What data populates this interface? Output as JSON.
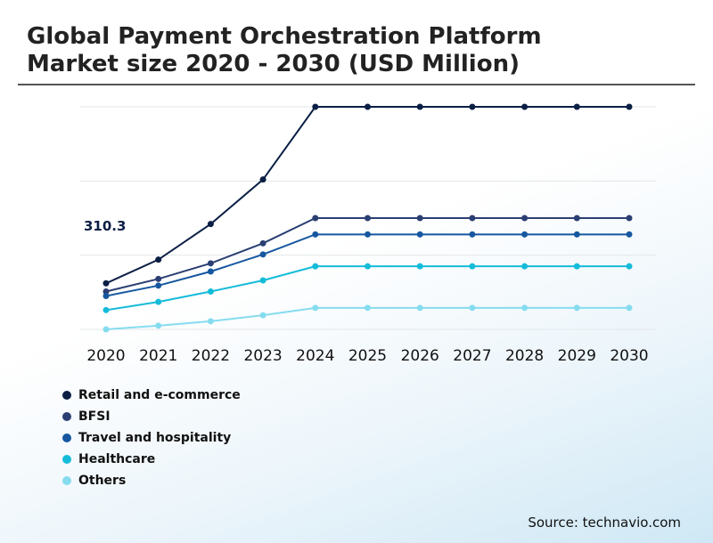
{
  "title_line1": "Global Payment Orchestration Platform",
  "title_line2": "Market size 2020 - 2030 (USD Million)",
  "source": "Source: technavio.com",
  "chart_data": {
    "type": "line",
    "title": "Global Payment Orchestration Platform Market size 2020 - 2030 (USD Million)",
    "xlabel": "",
    "ylabel": "",
    "ylim": [
      0,
      1500
    ],
    "grid": true,
    "legend_position": "bottom-left",
    "categories": [
      "2020",
      "2021",
      "2022",
      "2023",
      "2024",
      "2025",
      "2026",
      "2027",
      "2028",
      "2029",
      "2030"
    ],
    "annotation": "310.3",
    "series": [
      {
        "name": "Retail and e-commerce",
        "color": "#0b1f45",
        "values": [
          310.3,
          470,
          710,
          1010,
          1500,
          1500,
          1500,
          1500,
          1500,
          1500,
          1500
        ]
      },
      {
        "name": "BFSI",
        "color": "#2b3f73",
        "values": [
          255,
          340,
          445,
          580,
          750,
          750,
          750,
          750,
          750,
          750,
          750
        ]
      },
      {
        "name": "Travel and hospitality",
        "color": "#1657a0",
        "values": [
          225,
          295,
          390,
          505,
          640,
          640,
          640,
          640,
          640,
          640,
          640
        ]
      },
      {
        "name": "Healthcare",
        "color": "#14bcd9",
        "values": [
          130,
          185,
          255,
          330,
          425,
          425,
          425,
          425,
          425,
          425,
          425
        ]
      },
      {
        "name": "Others",
        "color": "#86dcef",
        "values": [
          0,
          25,
          55,
          95,
          145,
          145,
          145,
          145,
          145,
          145,
          145
        ]
      }
    ]
  }
}
